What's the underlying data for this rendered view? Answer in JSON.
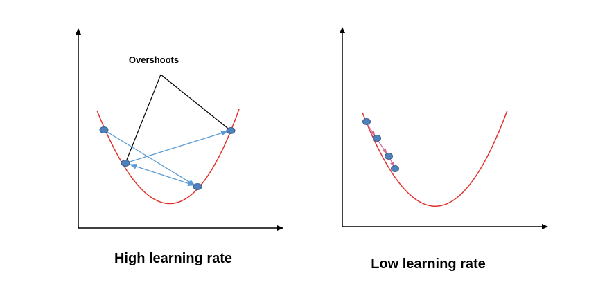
{
  "left": {
    "annotation": "Overshoots",
    "caption": "High learning rate"
  },
  "right": {
    "caption": "Low learning rate"
  }
}
